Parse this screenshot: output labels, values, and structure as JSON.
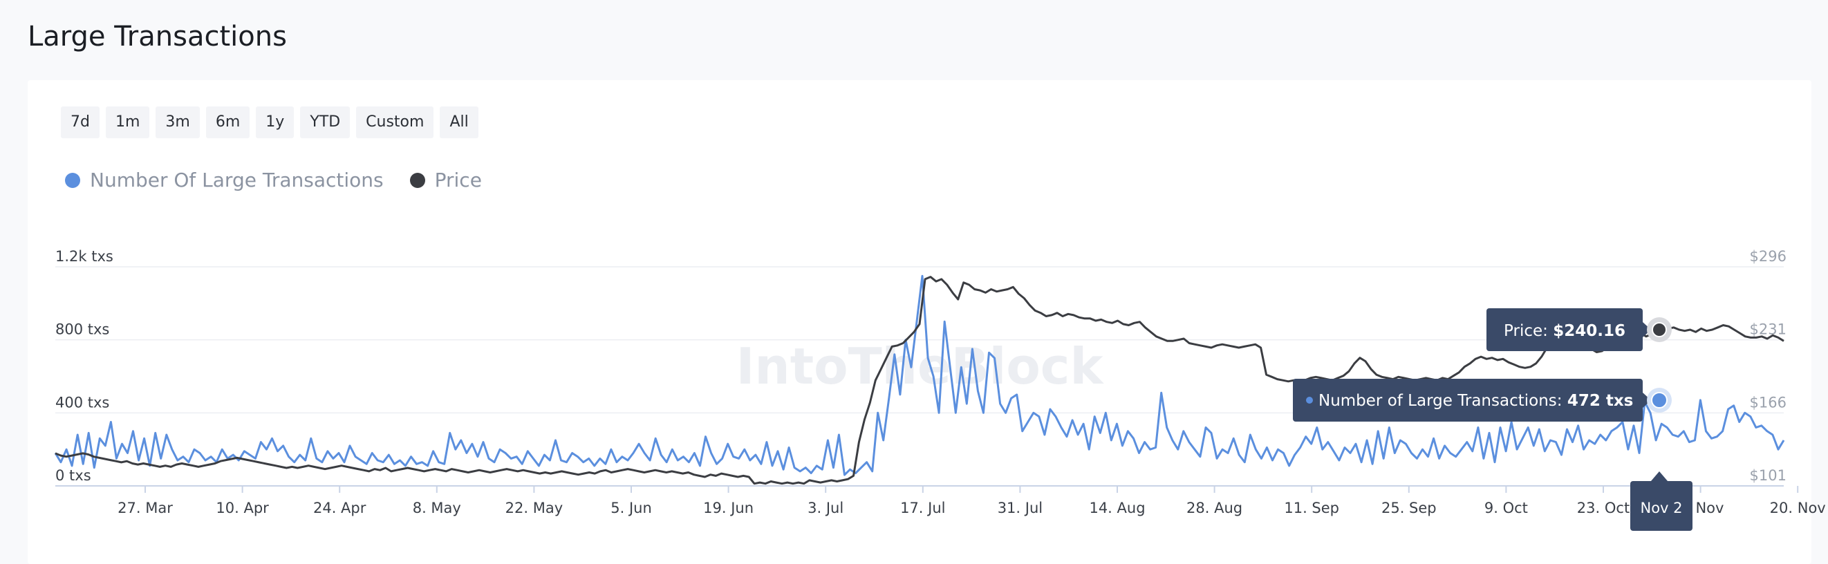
{
  "page": {
    "title": "Large Transactions"
  },
  "ranges": [
    "7d",
    "1m",
    "3m",
    "6m",
    "1y",
    "YTD",
    "Custom",
    "All"
  ],
  "legend": [
    {
      "label": "Number Of Large Transactions",
      "color": "#5b8fde"
    },
    {
      "label": "Price",
      "color": "#3b3d42"
    }
  ],
  "watermark": "IntoTheBlock",
  "tooltip": {
    "price_label": "Price:",
    "price_value": "$240.16",
    "tx_label": "Number of Large Transactions:",
    "tx_value": "472 txs",
    "date": "Nov 2"
  },
  "chart_data": {
    "type": "line",
    "x_ticks": [
      "27. Mar",
      "10. Apr",
      "24. Apr",
      "8. May",
      "22. May",
      "5. Jun",
      "19. Jun",
      "3. Jul",
      "17. Jul",
      "31. Jul",
      "14. Aug",
      "28. Aug",
      "11. Sep",
      "25. Sep",
      "9. Oct",
      "23. Oct",
      "6. Nov",
      "20. Nov"
    ],
    "y_left": {
      "ticks": [
        "0 txs",
        "400 txs",
        "800 txs",
        "1.2k txs"
      ],
      "range": [
        0,
        1200
      ]
    },
    "y_right": {
      "ticks": [
        "$101",
        "$166",
        "$231",
        "$296"
      ],
      "range": [
        101,
        296
      ]
    },
    "grid": true,
    "legend_position": "top-left",
    "series": [
      {
        "name": "Number Of Large Transactions",
        "axis": "left",
        "color": "#5b8fde",
        "values": [
          180,
          130,
          200,
          110,
          280,
          120,
          290,
          100,
          260,
          220,
          350,
          150,
          230,
          180,
          300,
          140,
          260,
          110,
          290,
          150,
          280,
          200,
          140,
          160,
          130,
          200,
          180,
          140,
          160,
          130,
          200,
          150,
          170,
          140,
          190,
          170,
          150,
          240,
          200,
          260,
          190,
          220,
          160,
          130,
          170,
          140,
          260,
          150,
          130,
          190,
          150,
          180,
          130,
          220,
          160,
          140,
          120,
          180,
          140,
          130,
          170,
          120,
          140,
          110,
          160,
          120,
          130,
          110,
          190,
          130,
          120,
          290,
          200,
          250,
          180,
          230,
          160,
          240,
          150,
          130,
          200,
          180,
          150,
          160,
          120,
          190,
          150,
          110,
          170,
          140,
          250,
          140,
          130,
          180,
          160,
          130,
          150,
          110,
          150,
          120,
          200,
          130,
          160,
          140,
          180,
          230,
          180,
          140,
          260,
          170,
          130,
          200,
          140,
          160,
          130,
          180,
          110,
          270,
          180,
          120,
          150,
          230,
          160,
          150,
          200,
          140,
          170,
          120,
          240,
          110,
          190,
          90,
          210,
          100,
          80,
          100,
          70,
          110,
          90,
          250,
          100,
          280,
          60,
          90,
          70,
          100,
          130,
          80,
          400,
          250,
          480,
          720,
          500,
          800,
          650,
          900,
          1150,
          700,
          600,
          400,
          900,
          650,
          400,
          650,
          450,
          750,
          520,
          400,
          730,
          700,
          450,
          400,
          480,
          500,
          300,
          350,
          400,
          380,
          280,
          420,
          380,
          320,
          270,
          360,
          280,
          340,
          200,
          380,
          290,
          400,
          250,
          340,
          220,
          300,
          260,
          180,
          240,
          200,
          210,
          510,
          320,
          250,
          200,
          300,
          240,
          200,
          160,
          320,
          290,
          150,
          200,
          180,
          260,
          170,
          130,
          280,
          200,
          150,
          210,
          140,
          200,
          180,
          110,
          170,
          210,
          270,
          230,
          320,
          200,
          240,
          190,
          140,
          210,
          180,
          230,
          130,
          250,
          120,
          300,
          150,
          320,
          180,
          250,
          230,
          180,
          150,
          200,
          160,
          260,
          150,
          220,
          180,
          160,
          200,
          240,
          190,
          320,
          150,
          290,
          130,
          320,
          190,
          350,
          200,
          260,
          320,
          220,
          310,
          190,
          250,
          240,
          170,
          310,
          240,
          330,
          200,
          250,
          230,
          280,
          250,
          300,
          320,
          350,
          200,
          330,
          180,
          460,
          400,
          250,
          340,
          320,
          280,
          270,
          300,
          240,
          250,
          470,
          300,
          260,
          270,
          300,
          420,
          440,
          350,
          400,
          380,
          320,
          330,
          300,
          280,
          200,
          250
        ]
      },
      {
        "name": "Price",
        "axis": "right",
        "color": "#3b3d42",
        "values": [
          130,
          128,
          127,
          128,
          129,
          130,
          129,
          127,
          126,
          125,
          124,
          123,
          122,
          123,
          121,
          120,
          121,
          120,
          119,
          118,
          119,
          118,
          120,
          121,
          120,
          119,
          118,
          119,
          120,
          121,
          123,
          124,
          125,
          126,
          125,
          124,
          123,
          122,
          121,
          120,
          119,
          118,
          117,
          118,
          117,
          118,
          119,
          118,
          117,
          116,
          117,
          118,
          119,
          118,
          117,
          116,
          115,
          114,
          116,
          115,
          117,
          114,
          115,
          116,
          117,
          116,
          115,
          114,
          115,
          116,
          115,
          114,
          116,
          115,
          114,
          113,
          114,
          115,
          114,
          113,
          114,
          115,
          116,
          115,
          114,
          115,
          114,
          113,
          112,
          113,
          112,
          113,
          114,
          113,
          112,
          111,
          112,
          113,
          112,
          114,
          115,
          113,
          114,
          115,
          116,
          115,
          114,
          113,
          114,
          115,
          114,
          113,
          114,
          113,
          112,
          113,
          111,
          110,
          109,
          111,
          110,
          112,
          111,
          110,
          109,
          110,
          109,
          103,
          104,
          103,
          105,
          104,
          103,
          104,
          103,
          104,
          103,
          106,
          105,
          104,
          105,
          106,
          105,
          106,
          107,
          110,
          140,
          160,
          175,
          195,
          205,
          215,
          225,
          226,
          228,
          233,
          238,
          245,
          285,
          287,
          283,
          285,
          280,
          273,
          267,
          282,
          280,
          276,
          275,
          273,
          276,
          274,
          275,
          276,
          278,
          272,
          268,
          262,
          257,
          255,
          252,
          253,
          255,
          252,
          254,
          253,
          251,
          250,
          250,
          248,
          249,
          247,
          246,
          248,
          245,
          244,
          246,
          247,
          242,
          238,
          234,
          232,
          230,
          230,
          231,
          232,
          228,
          227,
          226,
          225,
          224,
          226,
          227,
          226,
          225,
          224,
          225,
          226,
          227,
          224,
          200,
          198,
          196,
          195,
          194,
          195,
          193,
          195,
          197,
          198,
          197,
          196,
          195,
          197,
          199,
          203,
          210,
          215,
          212,
          205,
          200,
          198,
          197,
          196,
          198,
          197,
          196,
          195,
          196,
          197,
          196,
          195,
          197,
          196,
          199,
          202,
          207,
          210,
          214,
          216,
          214,
          215,
          213,
          214,
          211,
          209,
          207,
          206,
          207,
          210,
          216,
          224,
          226,
          228,
          232,
          236,
          228,
          222,
          224,
          223,
          220,
          221,
          225,
          233,
          238,
          238,
          236,
          235,
          237,
          234,
          236,
          239,
          240,
          241,
          242,
          240,
          239,
          240,
          238,
          241,
          239,
          240,
          242,
          244,
          243,
          240,
          237,
          234,
          233,
          233,
          234,
          232,
          235,
          233,
          230
        ]
      }
    ]
  }
}
